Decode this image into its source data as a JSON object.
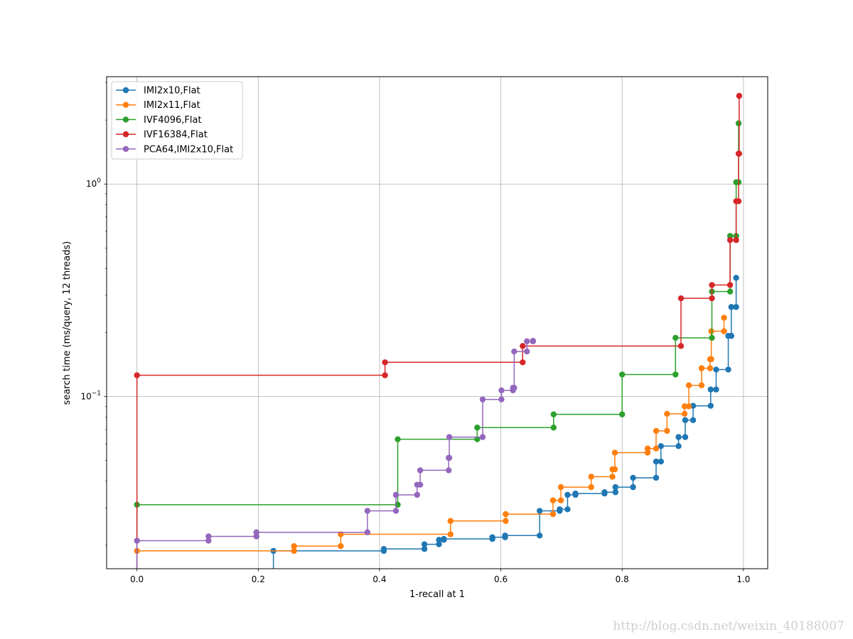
{
  "chart_data": {
    "type": "line",
    "xlabel": "1-recall at 1",
    "ylabel": "search time (ms/query, 12 threads)",
    "x_range": [
      -0.05,
      1.04
    ],
    "y_range": [
      0.0155,
      3.2
    ],
    "y_scale": "log",
    "x_ticks": [
      {
        "value": 0.0,
        "label": "0.0"
      },
      {
        "value": 0.2,
        "label": "0.2"
      },
      {
        "value": 0.4,
        "label": "0.4"
      },
      {
        "value": 0.6,
        "label": "0.6"
      },
      {
        "value": 0.8,
        "label": "0.8"
      },
      {
        "value": 1.0,
        "label": "1.0"
      }
    ],
    "y_ticks": [
      {
        "value": 0.1,
        "base": "10",
        "exp": "−1"
      },
      {
        "value": 1.0,
        "base": "10",
        "exp": "0"
      }
    ],
    "grid": true,
    "legend_position": "upper-left",
    "step": "post",
    "series": [
      {
        "name": "IMI2x10,Flat",
        "color": "#1f77b4",
        "points": [
          [
            0.225,
            0.0188
          ],
          [
            0.407,
            0.0192
          ],
          [
            0.474,
            0.0202
          ],
          [
            0.498,
            0.0212
          ],
          [
            0.506,
            0.0214
          ],
          [
            0.586,
            0.0218
          ],
          [
            0.607,
            0.0222
          ],
          [
            0.664,
            0.029
          ],
          [
            0.697,
            0.0295
          ],
          [
            0.71,
            0.0345
          ],
          [
            0.723,
            0.035
          ],
          [
            0.771,
            0.0355
          ],
          [
            0.789,
            0.0375
          ],
          [
            0.818,
            0.0415
          ],
          [
            0.856,
            0.0495
          ],
          [
            0.864,
            0.0585
          ],
          [
            0.893,
            0.0645
          ],
          [
            0.904,
            0.0775
          ],
          [
            0.917,
            0.0905
          ],
          [
            0.946,
            0.108
          ],
          [
            0.955,
            0.134
          ],
          [
            0.975,
            0.193
          ],
          [
            0.98,
            0.264
          ],
          [
            0.988,
            0.362
          ]
        ]
      },
      {
        "name": "IMI2x11,Flat",
        "color": "#ff7f0e",
        "points": [
          [
            0.0,
            0.0188
          ],
          [
            0.259,
            0.0198
          ],
          [
            0.336,
            0.0225
          ],
          [
            0.517,
            0.026
          ],
          [
            0.608,
            0.028
          ],
          [
            0.686,
            0.0325
          ],
          [
            0.699,
            0.0375
          ],
          [
            0.749,
            0.042
          ],
          [
            0.784,
            0.0455
          ],
          [
            0.788,
            0.0545
          ],
          [
            0.842,
            0.057
          ],
          [
            0.856,
            0.069
          ],
          [
            0.874,
            0.083
          ],
          [
            0.903,
            0.09
          ],
          [
            0.91,
            0.113
          ],
          [
            0.931,
            0.136
          ],
          [
            0.945,
            0.15
          ],
          [
            0.947,
            0.203
          ],
          [
            0.968,
            0.235
          ]
        ]
      },
      {
        "name": "IVF4096,Flat",
        "color": "#2ca02c",
        "points": [
          [
            0.0,
            0.031
          ],
          [
            0.43,
            0.063
          ],
          [
            0.561,
            0.0715
          ],
          [
            0.687,
            0.0825
          ],
          [
            0.8,
            0.127
          ],
          [
            0.888,
            0.189
          ],
          [
            0.948,
            0.312
          ],
          [
            0.978,
            0.57
          ],
          [
            0.988,
            1.02
          ],
          [
            0.992,
            1.93
          ]
        ]
      },
      {
        "name": "IVF16384,Flat",
        "color": "#d62728",
        "points": [
          [
            0.0,
            0.126
          ],
          [
            0.409,
            0.145
          ],
          [
            0.636,
            0.173
          ],
          [
            0.897,
            0.29
          ],
          [
            0.948,
            0.335
          ],
          [
            0.978,
            0.545
          ],
          [
            0.988,
            0.83
          ],
          [
            0.992,
            1.39
          ],
          [
            0.993,
            2.6
          ]
        ]
      },
      {
        "name": "PCA64,IMI2x10,Flat",
        "color": "#9467bd",
        "points": [
          [
            0.0,
            0.021
          ],
          [
            0.118,
            0.022
          ],
          [
            0.197,
            0.023
          ],
          [
            0.38,
            0.029
          ],
          [
            0.427,
            0.0345
          ],
          [
            0.462,
            0.0385
          ],
          [
            0.467,
            0.045
          ],
          [
            0.514,
            0.0515
          ],
          [
            0.515,
            0.0645
          ],
          [
            0.57,
            0.097
          ],
          [
            0.601,
            0.107
          ],
          [
            0.62,
            0.11
          ],
          [
            0.622,
            0.163
          ],
          [
            0.643,
            0.182
          ],
          [
            0.653,
            0.183
          ]
        ]
      }
    ]
  },
  "watermark": "http://blog.csdn.net/weixin_40188007"
}
